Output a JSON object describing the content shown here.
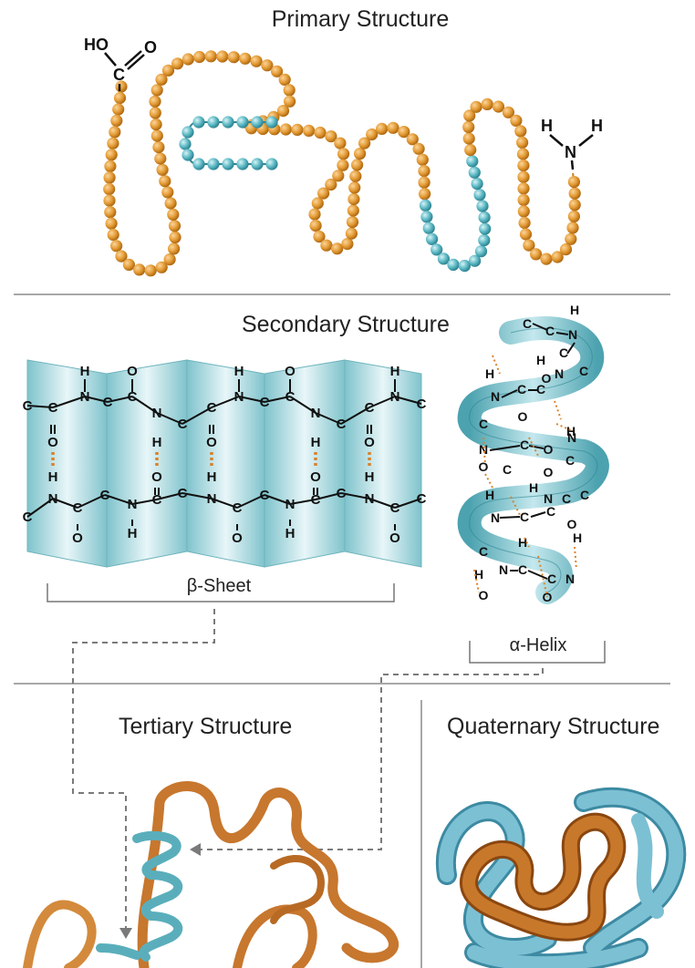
{
  "sections": {
    "primary": {
      "title": "Primary Structure",
      "n_terminus": "H  N  H",
      "c_terminus": "HO  O  C"
    },
    "secondary": {
      "title": "Secondary Structure",
      "sheet_label": "β-Sheet",
      "helix_label": "α-Helix"
    },
    "tertiary": {
      "title": "Tertiary Structure"
    },
    "quaternary": {
      "title": "Quaternary Structure"
    }
  },
  "atoms": {
    "carbon": "C",
    "nitrogen": "N",
    "oxygen": "O",
    "hydrogen": "H",
    "hydroxyl": "HO"
  },
  "colors": {
    "amino_orange": "#e39a34",
    "amino_teal": "#5bb8c4",
    "sheet_teal": "#a8d8de",
    "hbond": "#d9822b",
    "ribbon_orange": "#c7772e",
    "ribbon_teal": "#5aaebb",
    "quaternary_blue": "#6fb3c8",
    "divider": "#8c8c8c"
  }
}
